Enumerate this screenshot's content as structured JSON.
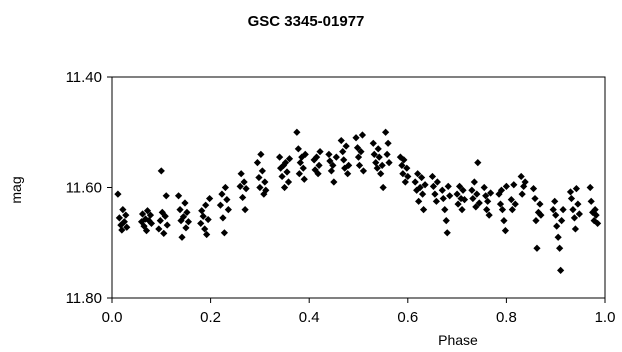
{
  "chart_data": {
    "type": "scatter",
    "title": "GSC 3345-01977",
    "xlabel": "Phase",
    "ylabel": "mag",
    "xlim": [
      0.0,
      1.0
    ],
    "ylim": [
      11.4,
      11.8
    ],
    "y_inverted": true,
    "x_ticks": [
      "0.0",
      "0.2",
      "0.4",
      "0.6",
      "0.8",
      "1.0"
    ],
    "y_ticks": [
      "11.40",
      "11.60",
      "11.80"
    ],
    "grid": false,
    "marker": "diamond",
    "marker_color": "#000000",
    "points": [
      [
        0.012,
        11.612
      ],
      [
        0.015,
        11.655
      ],
      [
        0.018,
        11.668
      ],
      [
        0.02,
        11.677
      ],
      [
        0.022,
        11.64
      ],
      [
        0.025,
        11.662
      ],
      [
        0.028,
        11.65
      ],
      [
        0.03,
        11.672
      ],
      [
        0.06,
        11.662
      ],
      [
        0.062,
        11.648
      ],
      [
        0.065,
        11.67
      ],
      [
        0.068,
        11.657
      ],
      [
        0.07,
        11.678
      ],
      [
        0.072,
        11.642
      ],
      [
        0.075,
        11.66
      ],
      [
        0.078,
        11.65
      ],
      [
        0.08,
        11.665
      ],
      [
        0.095,
        11.675
      ],
      [
        0.098,
        11.66
      ],
      [
        0.1,
        11.57
      ],
      [
        0.102,
        11.645
      ],
      [
        0.105,
        11.683
      ],
      [
        0.108,
        11.652
      ],
      [
        0.11,
        11.615
      ],
      [
        0.112,
        11.668
      ],
      [
        0.135,
        11.615
      ],
      [
        0.138,
        11.64
      ],
      [
        0.14,
        11.66
      ],
      [
        0.142,
        11.69
      ],
      [
        0.145,
        11.653
      ],
      [
        0.148,
        11.628
      ],
      [
        0.15,
        11.673
      ],
      [
        0.152,
        11.645
      ],
      [
        0.155,
        11.662
      ],
      [
        0.18,
        11.665
      ],
      [
        0.182,
        11.642
      ],
      [
        0.185,
        11.652
      ],
      [
        0.188,
        11.675
      ],
      [
        0.19,
        11.632
      ],
      [
        0.192,
        11.685
      ],
      [
        0.195,
        11.658
      ],
      [
        0.198,
        11.62
      ],
      [
        0.22,
        11.632
      ],
      [
        0.223,
        11.612
      ],
      [
        0.225,
        11.655
      ],
      [
        0.228,
        11.682
      ],
      [
        0.23,
        11.6
      ],
      [
        0.233,
        11.622
      ],
      [
        0.236,
        11.64
      ],
      [
        0.26,
        11.598
      ],
      [
        0.262,
        11.575
      ],
      [
        0.265,
        11.618
      ],
      [
        0.268,
        11.59
      ],
      [
        0.27,
        11.64
      ],
      [
        0.272,
        11.602
      ],
      [
        0.295,
        11.555
      ],
      [
        0.298,
        11.582
      ],
      [
        0.3,
        11.6
      ],
      [
        0.302,
        11.54
      ],
      [
        0.305,
        11.57
      ],
      [
        0.308,
        11.612
      ],
      [
        0.31,
        11.59
      ],
      [
        0.312,
        11.605
      ],
      [
        0.34,
        11.545
      ],
      [
        0.342,
        11.565
      ],
      [
        0.345,
        11.58
      ],
      [
        0.348,
        11.56
      ],
      [
        0.35,
        11.6
      ],
      [
        0.352,
        11.555
      ],
      [
        0.355,
        11.572
      ],
      [
        0.358,
        11.59
      ],
      [
        0.36,
        11.548
      ],
      [
        0.375,
        11.5
      ],
      [
        0.378,
        11.53
      ],
      [
        0.38,
        11.575
      ],
      [
        0.382,
        11.555
      ],
      [
        0.385,
        11.545
      ],
      [
        0.388,
        11.565
      ],
      [
        0.39,
        11.585
      ],
      [
        0.392,
        11.54
      ],
      [
        0.41,
        11.55
      ],
      [
        0.412,
        11.568
      ],
      [
        0.415,
        11.545
      ],
      [
        0.418,
        11.575
      ],
      [
        0.42,
        11.56
      ],
      [
        0.422,
        11.535
      ],
      [
        0.44,
        11.54
      ],
      [
        0.442,
        11.552
      ],
      [
        0.445,
        11.57
      ],
      [
        0.448,
        11.56
      ],
      [
        0.45,
        11.59
      ],
      [
        0.455,
        11.545
      ],
      [
        0.465,
        11.515
      ],
      [
        0.468,
        11.535
      ],
      [
        0.47,
        11.55
      ],
      [
        0.472,
        11.565
      ],
      [
        0.475,
        11.525
      ],
      [
        0.478,
        11.575
      ],
      [
        0.48,
        11.56
      ],
      [
        0.495,
        11.51
      ],
      [
        0.498,
        11.528
      ],
      [
        0.5,
        11.545
      ],
      [
        0.502,
        11.56
      ],
      [
        0.505,
        11.535
      ],
      [
        0.508,
        11.505
      ],
      [
        0.51,
        11.57
      ],
      [
        0.53,
        11.52
      ],
      [
        0.532,
        11.54
      ],
      [
        0.535,
        11.555
      ],
      [
        0.538,
        11.565
      ],
      [
        0.54,
        11.53
      ],
      [
        0.542,
        11.545
      ],
      [
        0.545,
        11.575
      ],
      [
        0.548,
        11.56
      ],
      [
        0.55,
        11.6
      ],
      [
        0.555,
        11.5
      ],
      [
        0.558,
        11.54
      ],
      [
        0.56,
        11.52
      ],
      [
        0.562,
        11.555
      ],
      [
        0.585,
        11.545
      ],
      [
        0.588,
        11.56
      ],
      [
        0.59,
        11.575
      ],
      [
        0.592,
        11.55
      ],
      [
        0.595,
        11.59
      ],
      [
        0.598,
        11.565
      ],
      [
        0.6,
        11.58
      ],
      [
        0.615,
        11.59
      ],
      [
        0.618,
        11.605
      ],
      [
        0.62,
        11.575
      ],
      [
        0.622,
        11.625
      ],
      [
        0.625,
        11.6
      ],
      [
        0.628,
        11.582
      ],
      [
        0.63,
        11.612
      ],
      [
        0.632,
        11.64
      ],
      [
        0.635,
        11.595
      ],
      [
        0.65,
        11.58
      ],
      [
        0.652,
        11.598
      ],
      [
        0.655,
        11.612
      ],
      [
        0.658,
        11.625
      ],
      [
        0.66,
        11.59
      ],
      [
        0.67,
        11.605
      ],
      [
        0.672,
        11.62
      ],
      [
        0.675,
        11.64
      ],
      [
        0.678,
        11.66
      ],
      [
        0.68,
        11.682
      ],
      [
        0.682,
        11.598
      ],
      [
        0.685,
        11.615
      ],
      [
        0.7,
        11.612
      ],
      [
        0.702,
        11.63
      ],
      [
        0.705,
        11.598
      ],
      [
        0.708,
        11.62
      ],
      [
        0.71,
        11.64
      ],
      [
        0.712,
        11.605
      ],
      [
        0.715,
        11.622
      ],
      [
        0.73,
        11.605
      ],
      [
        0.732,
        11.62
      ],
      [
        0.735,
        11.59
      ],
      [
        0.738,
        11.635
      ],
      [
        0.74,
        11.612
      ],
      [
        0.742,
        11.555
      ],
      [
        0.745,
        11.628
      ],
      [
        0.755,
        11.6
      ],
      [
        0.758,
        11.615
      ],
      [
        0.76,
        11.64
      ],
      [
        0.762,
        11.625
      ],
      [
        0.765,
        11.65
      ],
      [
        0.768,
        11.61
      ],
      [
        0.785,
        11.612
      ],
      [
        0.788,
        11.63
      ],
      [
        0.79,
        11.605
      ],
      [
        0.792,
        11.64
      ],
      [
        0.795,
        11.66
      ],
      [
        0.798,
        11.678
      ],
      [
        0.8,
        11.598
      ],
      [
        0.81,
        11.622
      ],
      [
        0.812,
        11.64
      ],
      [
        0.815,
        11.595
      ],
      [
        0.818,
        11.63
      ],
      [
        0.83,
        11.58
      ],
      [
        0.832,
        11.612
      ],
      [
        0.835,
        11.598
      ],
      [
        0.838,
        11.59
      ],
      [
        0.855,
        11.602
      ],
      [
        0.858,
        11.62
      ],
      [
        0.86,
        11.66
      ],
      [
        0.862,
        11.71
      ],
      [
        0.865,
        11.645
      ],
      [
        0.868,
        11.63
      ],
      [
        0.87,
        11.65
      ],
      [
        0.895,
        11.64
      ],
      [
        0.898,
        11.625
      ],
      [
        0.9,
        11.65
      ],
      [
        0.902,
        11.67
      ],
      [
        0.905,
        11.69
      ],
      [
        0.908,
        11.71
      ],
      [
        0.91,
        11.75
      ],
      [
        0.912,
        11.66
      ],
      [
        0.915,
        11.64
      ],
      [
        0.93,
        11.608
      ],
      [
        0.932,
        11.62
      ],
      [
        0.935,
        11.64
      ],
      [
        0.938,
        11.655
      ],
      [
        0.94,
        11.675
      ],
      [
        0.942,
        11.602
      ],
      [
        0.945,
        11.63
      ],
      [
        0.948,
        11.648
      ],
      [
        0.97,
        11.6
      ],
      [
        0.972,
        11.625
      ],
      [
        0.975,
        11.645
      ],
      [
        0.978,
        11.66
      ],
      [
        0.98,
        11.64
      ],
      [
        0.982,
        11.65
      ],
      [
        0.985,
        11.665
      ]
    ]
  }
}
